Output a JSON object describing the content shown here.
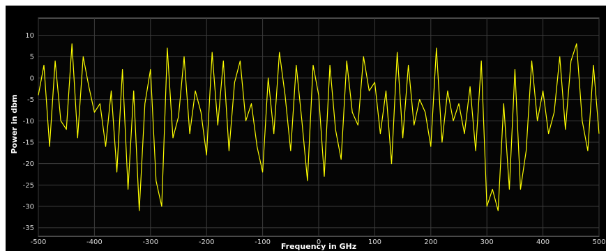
{
  "chart_data": {
    "type": "line",
    "title": "",
    "xlabel": "Frequency in GHz",
    "ylabel": "Power in dbm",
    "xlim": [
      -500,
      500
    ],
    "ylim": [
      -37,
      14
    ],
    "x_ticks": [
      -500,
      -400,
      -300,
      -200,
      -100,
      0,
      100,
      200,
      300,
      400,
      500
    ],
    "y_ticks": [
      10,
      5,
      0,
      -5,
      -10,
      -15,
      -20,
      -25,
      -30,
      -35
    ],
    "grid": true,
    "legend": "none",
    "series": [
      {
        "color": "#ffff00",
        "x": [
          -500,
          -490,
          -480,
          -470,
          -460,
          -450,
          -440,
          -430,
          -420,
          -410,
          -400,
          -390,
          -380,
          -370,
          -360,
          -350,
          -340,
          -330,
          -320,
          -310,
          -300,
          -290,
          -280,
          -270,
          -260,
          -250,
          -240,
          -230,
          -220,
          -210,
          -200,
          -190,
          -180,
          -170,
          -160,
          -150,
          -140,
          -130,
          -120,
          -110,
          -100,
          -90,
          -80,
          -70,
          -60,
          -50,
          -40,
          -30,
          -20,
          -10,
          0,
          10,
          20,
          30,
          40,
          50,
          60,
          70,
          80,
          90,
          100,
          110,
          120,
          130,
          140,
          150,
          160,
          170,
          180,
          190,
          200,
          210,
          220,
          230,
          240,
          250,
          260,
          270,
          280,
          290,
          300,
          310,
          320,
          330,
          340,
          350,
          360,
          370,
          380,
          390,
          400,
          410,
          420,
          430,
          440,
          450,
          460,
          470,
          480,
          490,
          500
        ],
        "y": [
          -4,
          3,
          -16,
          4,
          -10,
          -12,
          8,
          -14,
          5,
          -2,
          -8,
          -6,
          -16,
          -3,
          -22,
          2,
          -26,
          -3,
          -31,
          -6,
          2,
          -24,
          -30,
          7,
          -14,
          -9,
          5,
          -13,
          -3,
          -8,
          -18,
          6,
          -11,
          4,
          -17,
          -1,
          4,
          -10,
          -6,
          -16,
          -22,
          0,
          -13,
          6,
          -4,
          -17,
          3,
          -10,
          -24,
          3,
          -4,
          -23,
          3,
          -12,
          -19,
          4,
          -8,
          -11,
          5,
          -3,
          -1,
          -13,
          -3,
          -20,
          6,
          -14,
          3,
          -11,
          -5,
          -8,
          -16,
          7,
          -15,
          -3,
          -10,
          -6,
          -13,
          -2,
          -17,
          4,
          -30,
          -26,
          -31,
          -6,
          -26,
          2,
          -26,
          -17,
          4,
          -10,
          -3,
          -13,
          -8,
          5,
          -12,
          4,
          8,
          -10,
          -17,
          3,
          -13
        ]
      }
    ]
  }
}
